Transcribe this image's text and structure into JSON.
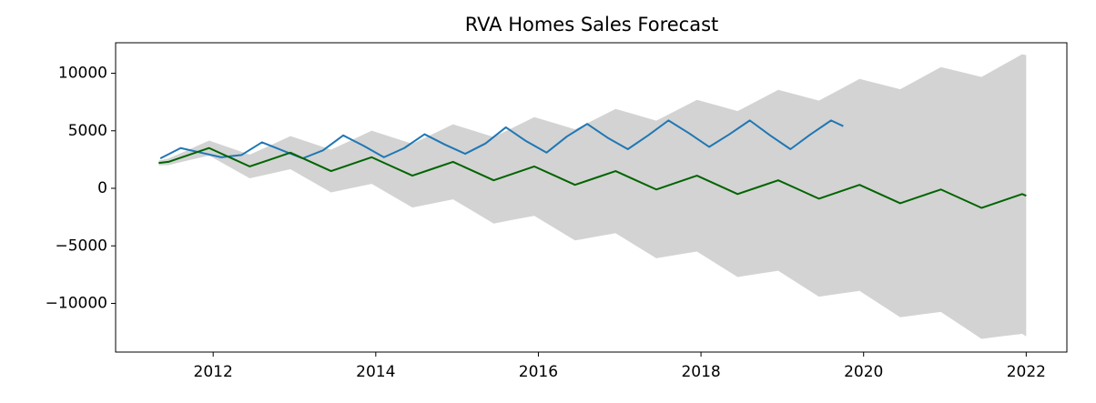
{
  "chart_data": {
    "type": "line",
    "title": "RVA Homes Sales Forecast",
    "xlim": [
      2010.8,
      2022.5
    ],
    "ylim": [
      -14230,
      12650
    ],
    "xticks": [
      2012,
      2014,
      2016,
      2018,
      2020,
      2022
    ],
    "yticks": [
      {
        "value": -10000,
        "label": "−10000"
      },
      {
        "value": -5000,
        "label": "−5000"
      },
      0,
      5000,
      10000
    ],
    "grid": false,
    "band": {
      "color": "#d3d3d3",
      "x": [
        2011.33,
        2011.45,
        2011.7,
        2011.95,
        2012.2,
        2012.45,
        2012.7,
        2012.95,
        2013.2,
        2013.45,
        2013.7,
        2013.95,
        2014.2,
        2014.45,
        2014.7,
        2014.95,
        2015.2,
        2015.45,
        2015.7,
        2015.95,
        2016.2,
        2016.45,
        2016.7,
        2016.95,
        2017.2,
        2017.45,
        2017.7,
        2017.95,
        2018.2,
        2018.45,
        2018.7,
        2018.95,
        2019.2,
        2019.45,
        2019.7,
        2019.95,
        2020.2,
        2020.45,
        2020.7,
        2020.95,
        2021.2,
        2021.45,
        2021.7,
        2021.95,
        2022.0
      ],
      "upper": [
        2400,
        2590,
        3360,
        4150,
        3540,
        2930,
        3730,
        4540,
        3950,
        3360,
        4180,
        5010,
        4440,
        3870,
        4710,
        5560,
        5010,
        4460,
        5320,
        6190,
        5660,
        5130,
        6010,
        6900,
        6390,
        5880,
        6780,
        7690,
        7200,
        6710,
        7630,
        8560,
        8090,
        7620,
        8560,
        9510,
        9060,
        8610,
        9570,
        10540,
        10110,
        9680,
        10660,
        11650,
        11570
      ],
      "lower": [
        2000,
        2020,
        2440,
        2850,
        1860,
        870,
        1270,
        1660,
        650,
        -360,
        20,
        390,
        -640,
        -1670,
        -1310,
        -960,
        -2010,
        -3060,
        -2720,
        -2390,
        -3460,
        -4530,
        -4210,
        -3900,
        -4990,
        -6080,
        -5780,
        -5490,
        -6600,
        -7710,
        -7430,
        -7160,
        -8290,
        -9420,
        -9160,
        -8910,
        -10060,
        -11210,
        -10970,
        -10740,
        -11910,
        -13080,
        -12860,
        -12650,
        -12870
      ]
    },
    "series": [
      {
        "color": "#1f77b4",
        "x": [
          2011.35,
          2011.6,
          2011.85,
          2012.1,
          2012.35,
          2012.6,
          2012.85,
          2013.1,
          2013.35,
          2013.6,
          2013.85,
          2014.1,
          2014.35,
          2014.6,
          2014.85,
          2015.1,
          2015.35,
          2015.6,
          2015.85,
          2016.1,
          2016.35,
          2016.6,
          2016.85,
          2017.1,
          2017.35,
          2017.6,
          2017.85,
          2018.1,
          2018.35,
          2018.6,
          2018.85,
          2019.1,
          2019.35,
          2019.6,
          2019.75
        ],
        "values": [
          2600,
          3500,
          3100,
          2700,
          2900,
          4000,
          3300,
          2600,
          3300,
          4600,
          3700,
          2700,
          3500,
          4700,
          3800,
          3000,
          3900,
          5300,
          4100,
          3100,
          4500,
          5600,
          4400,
          3400,
          4600,
          5900,
          4800,
          3600,
          4700,
          5900,
          4600,
          3400,
          4700,
          5900,
          5400
        ]
      },
      {
        "color": "#006400",
        "x": [
          2011.33,
          2011.45,
          2011.7,
          2011.95,
          2012.2,
          2012.45,
          2012.7,
          2012.95,
          2013.2,
          2013.45,
          2013.7,
          2013.95,
          2014.2,
          2014.45,
          2014.7,
          2014.95,
          2015.2,
          2015.45,
          2015.7,
          2015.95,
          2016.2,
          2016.45,
          2016.7,
          2016.95,
          2017.2,
          2017.45,
          2017.7,
          2017.95,
          2018.2,
          2018.45,
          2018.7,
          2018.95,
          2019.2,
          2019.45,
          2019.7,
          2019.95,
          2020.2,
          2020.45,
          2020.7,
          2020.95,
          2021.2,
          2021.45,
          2021.7,
          2021.95,
          2022.0
        ],
        "values": [
          2200,
          2300,
          2900,
          3500,
          2700,
          1900,
          2500,
          3100,
          2300,
          1500,
          2100,
          2700,
          1900,
          1100,
          1700,
          2300,
          1500,
          700,
          1300,
          1900,
          1100,
          300,
          900,
          1500,
          700,
          -100,
          500,
          1100,
          300,
          -500,
          100,
          700,
          -100,
          -900,
          -300,
          300,
          -500,
          -1300,
          -700,
          -100,
          -900,
          -1700,
          -1100,
          -500,
          -650
        ]
      }
    ]
  }
}
